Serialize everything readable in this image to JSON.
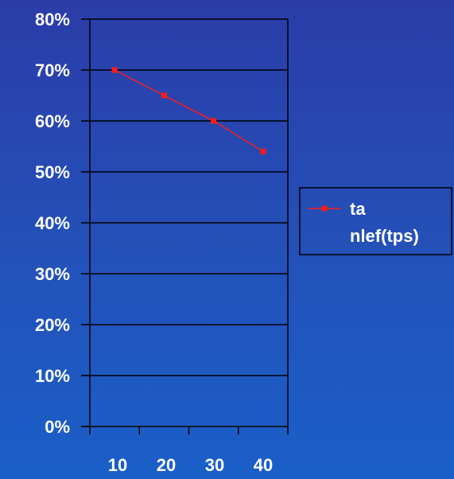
{
  "chart_data": {
    "type": "line",
    "categories": [
      "10",
      "20",
      "30",
      "40"
    ],
    "series": [
      {
        "name": "ta nlef(tps)",
        "values": [
          70,
          65,
          60,
          54
        ],
        "color": "#ff1a1a"
      }
    ],
    "y_unit": "%",
    "ylim": [
      0,
      80
    ],
    "y_ticks": [
      0,
      10,
      20,
      30,
      40,
      50,
      60,
      70,
      80
    ],
    "y_tick_labels": [
      "0%",
      "10%",
      "20%",
      "30%",
      "40%",
      "50%",
      "60%",
      "70%",
      "80%"
    ],
    "grid": true,
    "legend": {
      "position": "right",
      "lines": [
        "ta",
        "nlef(tps)"
      ]
    },
    "colors": {
      "background": "#2450b8",
      "axis": "#000000",
      "text": "#ffffff",
      "series": "#ff1a1a"
    }
  }
}
